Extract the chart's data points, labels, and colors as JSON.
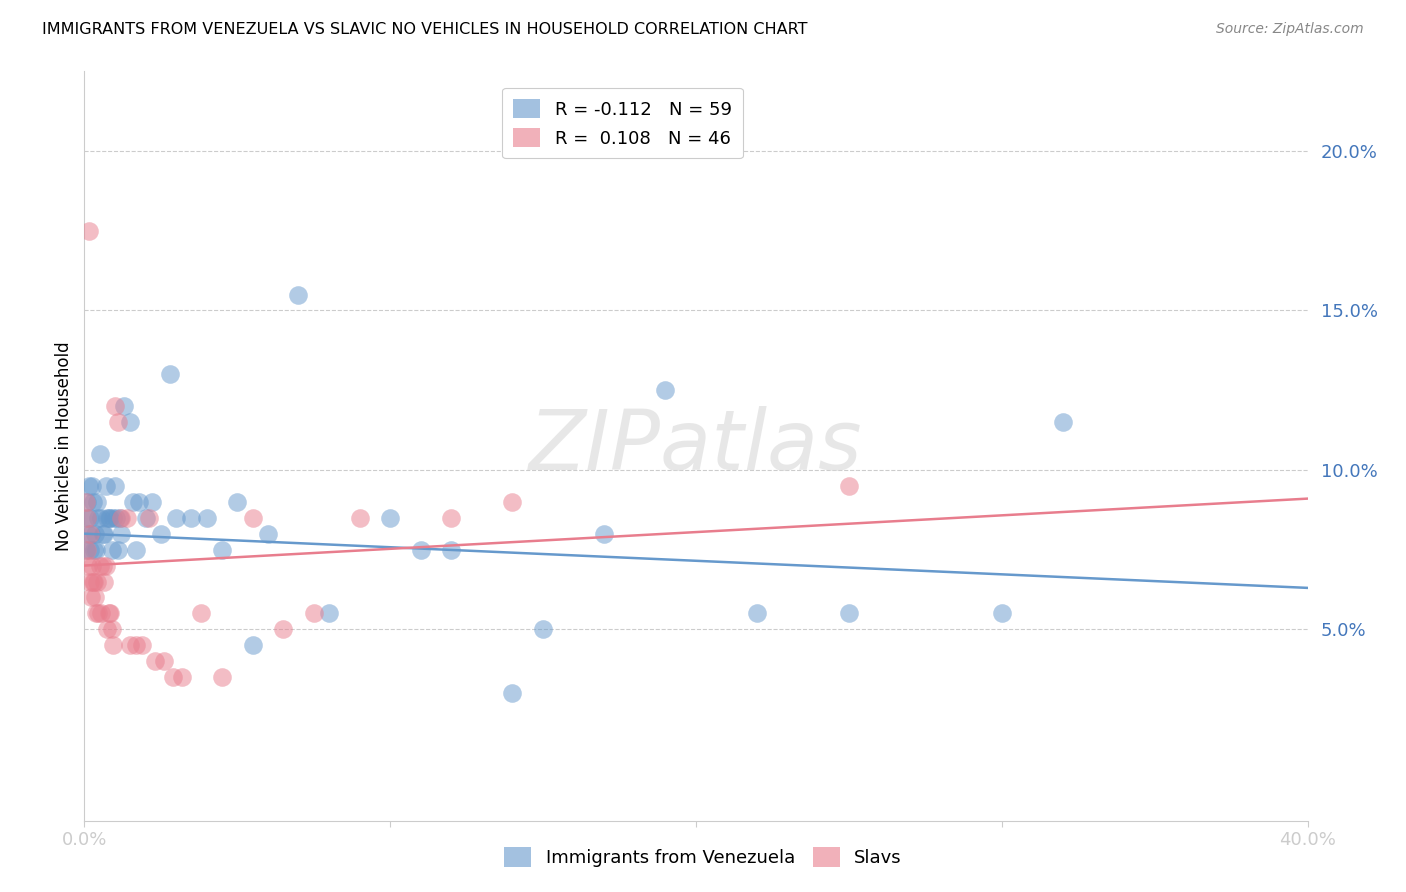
{
  "title": "IMMIGRANTS FROM VENEZUELA VS SLAVIC NO VEHICLES IN HOUSEHOLD CORRELATION CHART",
  "source": "Source: ZipAtlas.com",
  "ylabel": "No Vehicles in Household",
  "right_ytick_vals": [
    5.0,
    10.0,
    15.0,
    20.0
  ],
  "right_ytick_labels": [
    "5.0%",
    "10.0%",
    "15.0%",
    "20.0%"
  ],
  "xlim": [
    0.0,
    40.0
  ],
  "ylim": [
    -1.0,
    22.5
  ],
  "blue_color": "#6699cc",
  "pink_color": "#e87d8d",
  "axis_label_color": "#4477bb",
  "watermark": "ZIPatlas",
  "legend1_label": "R = -0.112   N = 59",
  "legend2_label": "R =  0.108   N = 46",
  "blue_line_x": [
    0.0,
    40.0
  ],
  "blue_line_y": [
    8.0,
    6.3
  ],
  "pink_line_x": [
    0.0,
    40.0
  ],
  "pink_line_y": [
    7.0,
    9.1
  ],
  "blue_points_x": [
    0.05,
    0.08,
    0.1,
    0.12,
    0.15,
    0.18,
    0.2,
    0.22,
    0.25,
    0.28,
    0.3,
    0.35,
    0.38,
    0.4,
    0.45,
    0.5,
    0.55,
    0.6,
    0.65,
    0.7,
    0.75,
    0.8,
    0.85,
    0.9,
    0.95,
    1.0,
    1.05,
    1.1,
    1.15,
    1.2,
    1.3,
    1.5,
    1.6,
    1.7,
    1.8,
    2.0,
    2.2,
    2.5,
    2.8,
    3.0,
    3.5,
    4.0,
    4.5,
    5.0,
    5.5,
    6.0,
    7.0,
    8.0,
    10.0,
    11.0,
    12.0,
    14.0,
    15.0,
    17.0,
    19.0,
    22.0,
    25.0,
    30.0,
    32.0
  ],
  "blue_points_y": [
    7.5,
    8.5,
    9.0,
    8.0,
    9.5,
    7.5,
    8.5,
    8.0,
    9.5,
    9.0,
    7.5,
    8.0,
    7.5,
    9.0,
    8.5,
    10.5,
    8.5,
    8.0,
    8.0,
    9.5,
    8.5,
    8.5,
    8.5,
    7.5,
    8.5,
    9.5,
    8.5,
    7.5,
    8.5,
    8.0,
    12.0,
    11.5,
    9.0,
    7.5,
    9.0,
    8.5,
    9.0,
    8.0,
    13.0,
    8.5,
    8.5,
    8.5,
    7.5,
    9.0,
    4.5,
    8.0,
    15.5,
    5.5,
    8.5,
    7.5,
    7.5,
    3.0,
    5.0,
    8.0,
    12.5,
    5.5,
    5.5,
    5.5,
    11.5
  ],
  "pink_points_x": [
    0.05,
    0.08,
    0.1,
    0.12,
    0.15,
    0.18,
    0.2,
    0.22,
    0.25,
    0.28,
    0.3,
    0.35,
    0.38,
    0.4,
    0.45,
    0.5,
    0.55,
    0.6,
    0.65,
    0.7,
    0.75,
    0.8,
    0.85,
    0.9,
    0.95,
    1.0,
    1.1,
    1.2,
    1.4,
    1.5,
    1.7,
    1.9,
    2.1,
    2.3,
    2.6,
    2.9,
    3.2,
    3.8,
    4.5,
    5.5,
    6.5,
    7.5,
    9.0,
    12.0,
    14.0,
    25.0
  ],
  "pink_points_y": [
    9.0,
    8.5,
    7.5,
    7.0,
    17.5,
    6.5,
    8.0,
    6.0,
    7.0,
    6.5,
    6.5,
    6.0,
    5.5,
    6.5,
    5.5,
    7.0,
    5.5,
    7.0,
    6.5,
    7.0,
    5.0,
    5.5,
    5.5,
    5.0,
    4.5,
    12.0,
    11.5,
    8.5,
    8.5,
    4.5,
    4.5,
    4.5,
    8.5,
    4.0,
    4.0,
    3.5,
    3.5,
    5.5,
    3.5,
    8.5,
    5.0,
    5.5,
    8.5,
    8.5,
    9.0,
    9.5
  ]
}
